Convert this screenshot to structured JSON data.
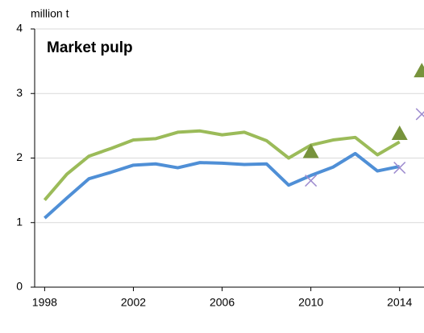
{
  "chart_data": {
    "type": "line",
    "title": "Market pulp",
    "ylabel": "million t",
    "xlim": [
      1997.55,
      2015.1
    ],
    "xticks": [
      1998,
      2002,
      2006,
      2010,
      2014
    ],
    "ylim": [
      0,
      4
    ],
    "yticks": [
      0,
      1,
      2,
      3,
      4
    ],
    "grid": true,
    "series": [
      {
        "style": "line",
        "color": "#9bbb59",
        "x": [
          1998,
          1999,
          2000,
          2001,
          2002,
          2003,
          2004,
          2005,
          2006,
          2007,
          2008,
          2009,
          2010,
          2011,
          2012,
          2013,
          2014
        ],
        "values": [
          1.35,
          1.75,
          2.03,
          2.15,
          2.28,
          2.3,
          2.4,
          2.42,
          2.36,
          2.4,
          2.27,
          2.0,
          2.2,
          2.28,
          2.32,
          2.05,
          2.25
        ]
      },
      {
        "style": "line",
        "color": "#4f8fd6",
        "x": [
          1998,
          1999,
          2000,
          2001,
          2002,
          2003,
          2004,
          2005,
          2006,
          2007,
          2008,
          2009,
          2010,
          2011,
          2012,
          2013,
          2014
        ],
        "values": [
          1.07,
          1.38,
          1.68,
          1.78,
          1.89,
          1.91,
          1.85,
          1.93,
          1.92,
          1.9,
          1.91,
          1.58,
          1.73,
          1.86,
          2.07,
          1.8,
          1.87
        ]
      },
      {
        "style": "triangle",
        "color": "#77933c",
        "x": [
          2010,
          2014,
          2015
        ],
        "values": [
          2.1,
          2.38,
          3.35
        ]
      },
      {
        "style": "cross",
        "color": "#9e8ccf",
        "x": [
          2010,
          2014,
          2015
        ],
        "values": [
          1.65,
          1.85,
          2.68
        ]
      }
    ]
  }
}
